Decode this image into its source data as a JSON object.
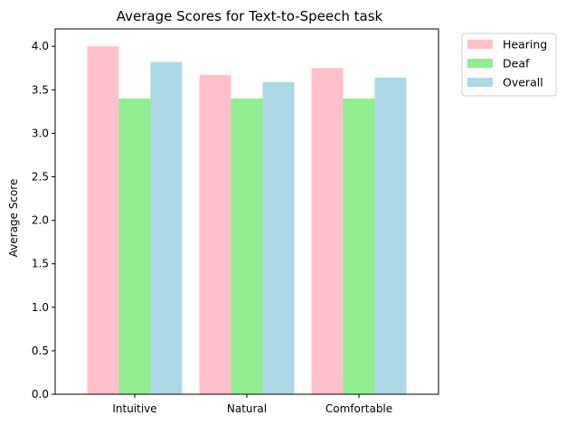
{
  "chart_data": {
    "type": "bar",
    "title": "Average Scores for Text-to-Speech task",
    "xlabel": "",
    "ylabel": "Average Score",
    "categories": [
      "Intuitive",
      "Natural",
      "Comfortable"
    ],
    "series": [
      {
        "name": "Hearing",
        "values": [
          4.0,
          3.67,
          3.75
        ],
        "color": "#ffc0cb"
      },
      {
        "name": "Deaf",
        "values": [
          3.4,
          3.4,
          3.4
        ],
        "color": "#90ee90"
      },
      {
        "name": "Overall",
        "values": [
          3.82,
          3.59,
          3.64
        ],
        "color": "#add8e6"
      }
    ],
    "ylim": [
      0,
      4.2
    ],
    "yticks": [
      "0.0",
      "0.5",
      "1.0",
      "1.5",
      "2.0",
      "2.5",
      "3.0",
      "3.5",
      "4.0"
    ],
    "grid": false,
    "legend_position": "outside-top-right"
  }
}
